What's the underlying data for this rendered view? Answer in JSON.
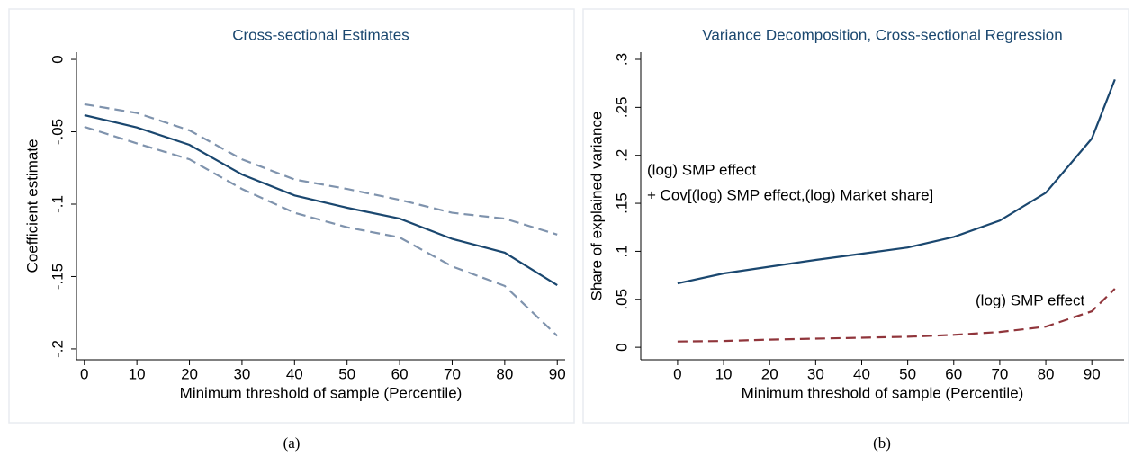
{
  "chart_data": [
    {
      "type": "line",
      "title": "Cross-sectional Estimates",
      "caption": "(a)",
      "xlabel": "Minimum threshold of sample (Percentile)",
      "ylabel": "Coefficient estimate",
      "x": [
        0,
        10,
        20,
        30,
        40,
        50,
        60,
        70,
        80,
        90
      ],
      "series": [
        {
          "color": "#1a476f",
          "dash": false,
          "values": [
            -0.0385,
            -0.047,
            -0.059,
            -0.0795,
            -0.094,
            -0.1025,
            -0.11,
            -0.124,
            -0.1335,
            -0.156
          ]
        },
        {
          "color": "#7f93ad",
          "dash": true,
          "values": [
            -0.031,
            -0.037,
            -0.049,
            -0.069,
            -0.083,
            -0.0895,
            -0.097,
            -0.106,
            -0.11,
            -0.121
          ]
        },
        {
          "color": "#7f93ad",
          "dash": true,
          "values": [
            -0.0466,
            -0.058,
            -0.069,
            -0.0895,
            -0.106,
            -0.116,
            -0.123,
            -0.143,
            -0.1565,
            -0.191
          ]
        }
      ],
      "xlim": [
        -1.5,
        91.5
      ],
      "xticks": [
        0,
        10,
        20,
        30,
        40,
        50,
        60,
        70,
        80,
        90
      ],
      "ylim": [
        -0.2075,
        0.005
      ],
      "yticks": [
        0,
        {
          "value": -0.05,
          "label": "-.05"
        },
        {
          "value": -0.1,
          "label": "-.1"
        },
        {
          "value": -0.15,
          "label": "-.15"
        },
        {
          "value": -0.2,
          "label": "-.2"
        }
      ],
      "annotations": []
    },
    {
      "type": "line",
      "title": "Variance Decomposition, Cross-sectional Regression",
      "caption": "(b)",
      "xlabel": "Minimum threshold of sample (Percentile)",
      "ylabel": "Share of explained variance",
      "x": [
        0,
        10,
        20,
        30,
        40,
        50,
        60,
        70,
        80,
        90,
        95
      ],
      "series": [
        {
          "color": "#1a476f",
          "dash": false,
          "values": [
            0.0666,
            0.077,
            0.084,
            0.091,
            0.0975,
            0.104,
            0.115,
            0.132,
            0.161,
            0.2175,
            0.279
          ]
        },
        {
          "color": "#90353b",
          "dash": true,
          "values": [
            0.006,
            0.0066,
            0.008,
            0.009,
            0.01,
            0.011,
            0.013,
            0.016,
            0.0215,
            0.0375,
            0.061
          ]
        }
      ],
      "xlim": [
        -8,
        97
      ],
      "xticks": [
        0,
        10,
        20,
        30,
        40,
        50,
        60,
        70,
        80,
        90
      ],
      "ylim": [
        -0.013,
        0.3075
      ],
      "yticks": [
        0,
        {
          "value": 0.05,
          "label": ".05"
        },
        {
          "value": 0.1,
          "label": ".1"
        },
        {
          "value": 0.15,
          "label": ".15"
        },
        {
          "value": 0.2,
          "label": ".2"
        },
        {
          "value": 0.25,
          "label": ".25"
        },
        {
          "value": 0.3,
          "label": ".3"
        }
      ],
      "annotations": [
        "(log) SMP effect",
        "+ Cov[(log) SMP effect,(log) Market share]",
        "(log) SMP effect"
      ]
    }
  ]
}
